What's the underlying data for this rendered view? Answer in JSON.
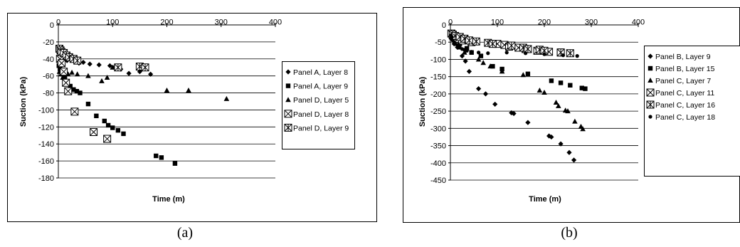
{
  "chart_data": [
    {
      "type": "scatter",
      "caption": "(a)",
      "xlabel": "Time (m)",
      "ylabel": "Suction (kPa)",
      "xlim": [
        0,
        400
      ],
      "ylim": [
        -180,
        0
      ],
      "xticks": [
        0,
        100,
        200,
        300,
        400
      ],
      "yticks": [
        0,
        -20,
        -40,
        -60,
        -80,
        -100,
        -120,
        -140,
        -160,
        -180
      ],
      "grid": "horizontal",
      "legend_position": "right",
      "series": [
        {
          "name": "Panel A, Layer 8",
          "marker": "diamond",
          "points": [
            [
              2,
              -30
            ],
            [
              4,
              -33
            ],
            [
              6,
              -38
            ],
            [
              9,
              -35
            ],
            [
              12,
              -40
            ],
            [
              16,
              -42
            ],
            [
              20,
              -38
            ],
            [
              25,
              -40
            ],
            [
              30,
              -42
            ],
            [
              38,
              -45
            ],
            [
              46,
              -44
            ],
            [
              58,
              -46
            ],
            [
              75,
              -47
            ],
            [
              95,
              -48
            ],
            [
              103,
              -50
            ],
            [
              115,
              -52
            ],
            [
              130,
              -57
            ],
            [
              150,
              -55
            ],
            [
              170,
              -58
            ]
          ]
        },
        {
          "name": "Panel A, Layer 9",
          "marker": "square",
          "points": [
            [
              1,
              -48
            ],
            [
              3,
              -52
            ],
            [
              5,
              -55
            ],
            [
              8,
              -58
            ],
            [
              12,
              -62
            ],
            [
              16,
              -68
            ],
            [
              22,
              -72
            ],
            [
              28,
              -76
            ],
            [
              34,
              -78
            ],
            [
              40,
              -80
            ],
            [
              55,
              -93
            ],
            [
              70,
              -107
            ],
            [
              85,
              -113
            ],
            [
              92,
              -118
            ],
            [
              100,
              -121
            ],
            [
              110,
              -124
            ],
            [
              120,
              -128
            ],
            [
              180,
              -154
            ],
            [
              190,
              -156
            ],
            [
              215,
              -163
            ]
          ]
        },
        {
          "name": "Panel D, Layer 5",
          "marker": "triangle",
          "points": [
            [
              2,
              -55
            ],
            [
              5,
              -58
            ],
            [
              8,
              -62
            ],
            [
              12,
              -55
            ],
            [
              18,
              -58
            ],
            [
              25,
              -56
            ],
            [
              35,
              -58
            ],
            [
              55,
              -60
            ],
            [
              80,
              -66
            ],
            [
              90,
              -62
            ],
            [
              100,
              -50
            ],
            [
              200,
              -77
            ],
            [
              240,
              -77
            ],
            [
              310,
              -87
            ]
          ]
        },
        {
          "name": "Panel D, Layer 8",
          "marker": "box-x",
          "points": [
            [
              3,
              -40
            ],
            [
              6,
              -45
            ],
            [
              10,
              -55
            ],
            [
              14,
              -68
            ],
            [
              18,
              -78
            ],
            [
              30,
              -102
            ],
            [
              65,
              -126
            ],
            [
              90,
              -134
            ]
          ]
        },
        {
          "name": "Panel D, Layer 9",
          "marker": "box-star",
          "points": [
            [
              2,
              -28
            ],
            [
              4,
              -30
            ],
            [
              6,
              -32
            ],
            [
              10,
              -33
            ],
            [
              15,
              -36
            ],
            [
              20,
              -38
            ],
            [
              28,
              -40
            ],
            [
              35,
              -42
            ],
            [
              110,
              -50
            ],
            [
              150,
              -49
            ],
            [
              160,
              -50
            ]
          ]
        }
      ]
    },
    {
      "type": "scatter",
      "caption": "(b)",
      "xlabel": "Time (m)",
      "ylabel": "Suction (kPa)",
      "xlim": [
        0,
        400
      ],
      "ylim": [
        -450,
        0
      ],
      "xticks": [
        0,
        100,
        200,
        300,
        400
      ],
      "yticks": [
        0,
        -50,
        -100,
        -150,
        -200,
        -250,
        -300,
        -350,
        -400,
        -450
      ],
      "grid": "horizontal",
      "legend_position": "right",
      "series": [
        {
          "name": "Panel B, Layer 9",
          "marker": "diamond",
          "points": [
            [
              3,
              -40
            ],
            [
              8,
              -55
            ],
            [
              15,
              -65
            ],
            [
              25,
              -90
            ],
            [
              32,
              -105
            ],
            [
              40,
              -135
            ],
            [
              60,
              -185
            ],
            [
              75,
              -200
            ],
            [
              95,
              -230
            ],
            [
              130,
              -255
            ],
            [
              135,
              -257
            ],
            [
              165,
              -283
            ],
            [
              210,
              -322
            ],
            [
              215,
              -325
            ],
            [
              235,
              -345
            ],
            [
              253,
              -370
            ],
            [
              263,
              -392
            ]
          ]
        },
        {
          "name": "Panel B, Layer 15",
          "marker": "square",
          "points": [
            [
              5,
              -40
            ],
            [
              12,
              -45
            ],
            [
              20,
              -55
            ],
            [
              35,
              -68
            ],
            [
              45,
              -80
            ],
            [
              65,
              -90
            ],
            [
              90,
              -120
            ],
            [
              110,
              -128
            ],
            [
              165,
              -142
            ],
            [
              215,
              -162
            ],
            [
              235,
              -168
            ],
            [
              255,
              -175
            ],
            [
              280,
              -183
            ],
            [
              287,
              -185
            ]
          ]
        },
        {
          "name": "Panel C, Layer 7",
          "marker": "triangle",
          "points": [
            [
              3,
              -38
            ],
            [
              10,
              -50
            ],
            [
              20,
              -65
            ],
            [
              30,
              -80
            ],
            [
              60,
              -100
            ],
            [
              70,
              -110
            ],
            [
              85,
              -120
            ],
            [
              110,
              -135
            ],
            [
              155,
              -145
            ],
            [
              190,
              -190
            ],
            [
              200,
              -196
            ],
            [
              225,
              -225
            ],
            [
              230,
              -235
            ],
            [
              245,
              -248
            ],
            [
              250,
              -250
            ],
            [
              265,
              -280
            ],
            [
              278,
              -295
            ],
            [
              282,
              -302
            ]
          ]
        },
        {
          "name": "Panel C, Layer 11",
          "marker": "box-x",
          "points": [
            [
              5,
              -30
            ],
            [
              10,
              -35
            ],
            [
              15,
              -40
            ],
            [
              25,
              -45
            ],
            [
              45,
              -50
            ],
            [
              100,
              -55
            ],
            [
              115,
              -58
            ],
            [
              125,
              -63
            ],
            [
              145,
              -66
            ],
            [
              160,
              -70
            ],
            [
              185,
              -75
            ],
            [
              210,
              -78
            ],
            [
              235,
              -80
            ]
          ]
        },
        {
          "name": "Panel C, Layer 16",
          "marker": "box-star",
          "points": [
            [
              2,
              -25
            ],
            [
              5,
              -28
            ],
            [
              10,
              -32
            ],
            [
              20,
              -35
            ],
            [
              30,
              -40
            ],
            [
              40,
              -45
            ],
            [
              55,
              -48
            ],
            [
              80,
              -52
            ],
            [
              90,
              -55
            ],
            [
              130,
              -60
            ],
            [
              155,
              -66
            ],
            [
              165,
              -70
            ],
            [
              190,
              -72
            ],
            [
              200,
              -75
            ],
            [
              235,
              -80
            ],
            [
              255,
              -82
            ]
          ]
        },
        {
          "name": "Panel C, Layer 18",
          "marker": "circle",
          "points": [
            [
              1,
              -30
            ],
            [
              3,
              -35
            ],
            [
              5,
              -45
            ],
            [
              8,
              -50
            ],
            [
              10,
              -55
            ],
            [
              15,
              -60
            ],
            [
              20,
              -65
            ],
            [
              25,
              -70
            ],
            [
              30,
              -72
            ],
            [
              35,
              -75
            ],
            [
              45,
              -78
            ],
            [
              60,
              -80
            ],
            [
              80,
              -82
            ],
            [
              120,
              -80
            ],
            [
              160,
              -82
            ],
            [
              200,
              -85
            ],
            [
              240,
              -88
            ],
            [
              270,
              -90
            ]
          ]
        }
      ]
    }
  ]
}
